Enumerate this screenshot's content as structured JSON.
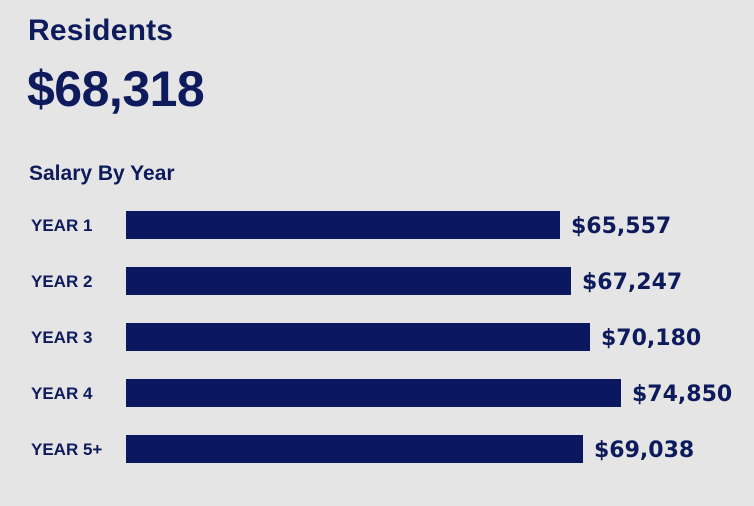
{
  "header": {
    "title": "Residents",
    "value": "$68,318"
  },
  "colors": {
    "background": "#e5e5e5",
    "bar": "#0b1860",
    "text": "#0d1a5c"
  },
  "chart_data": {
    "type": "bar",
    "orientation": "horizontal",
    "title": "Salary By Year",
    "categories": [
      "YEAR 1",
      "YEAR 2",
      "YEAR 3",
      "YEAR 4",
      "YEAR 5+"
    ],
    "values": [
      65557,
      67247,
      70180,
      74850,
      69038
    ],
    "value_labels": [
      "$65,557",
      "$67,247",
      "$70,180",
      "$74,850",
      "$69,038"
    ],
    "xlim": [
      0,
      74850
    ],
    "grid": false,
    "legend": "none"
  }
}
